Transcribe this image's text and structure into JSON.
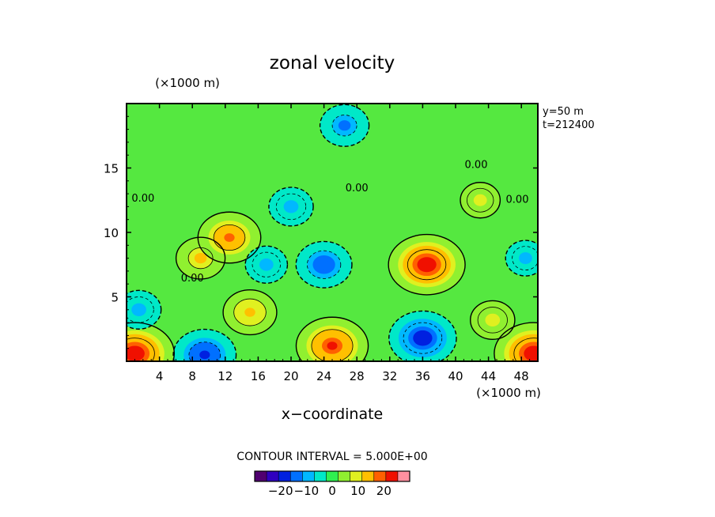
{
  "chart_data": {
    "type": "heatmap",
    "title": "zonal velocity",
    "xlabel": "x−coordinate",
    "x_unit": "(×1000 m)",
    "y_unit": "(×1000 m)",
    "xlim": [
      0,
      50
    ],
    "ylim": [
      0,
      20
    ],
    "x_ticks": [
      4,
      8,
      12,
      16,
      20,
      24,
      28,
      32,
      36,
      40,
      44,
      48
    ],
    "y_ticks": [
      5,
      10,
      15
    ],
    "annotations": [
      "y=50  m",
      "t=212400"
    ],
    "contour_interval_label": "CONTOUR INTERVAL = 5.000E+00",
    "contour_label": "0.00",
    "colorbar": {
      "min": -30,
      "max": 30,
      "ticks": [
        -20,
        -10,
        0,
        10,
        20
      ],
      "tick_labels": [
        "−20",
        "−10",
        "0",
        "10",
        "20"
      ]
    },
    "features": [
      {
        "x": 9,
        "y": 8,
        "value": 12
      },
      {
        "x": 15,
        "y": 3.8,
        "value": 14
      },
      {
        "x": 12.5,
        "y": 9.6,
        "value": 18
      },
      {
        "x": 36.5,
        "y": 7.5,
        "value": 24
      },
      {
        "x": 25,
        "y": 1.2,
        "value": 22
      },
      {
        "x": 44.5,
        "y": 3.2,
        "value": 10
      },
      {
        "x": 1,
        "y": 0.6,
        "value": 25
      },
      {
        "x": 49.5,
        "y": 0.6,
        "value": 25
      },
      {
        "x": 24,
        "y": 7.5,
        "value": -15
      },
      {
        "x": 36,
        "y": 1.8,
        "value": -20
      },
      {
        "x": 9.5,
        "y": 0.5,
        "value": -18
      },
      {
        "x": 17,
        "y": 7.5,
        "value": -9
      },
      {
        "x": 1.5,
        "y": 4,
        "value": -10
      },
      {
        "x": 20,
        "y": 12,
        "value": -10
      },
      {
        "x": 26.5,
        "y": 18.3,
        "value": -12
      },
      {
        "x": 48.5,
        "y": 8,
        "value": -8
      },
      {
        "x": 43,
        "y": 12.5,
        "value": 8
      }
    ]
  },
  "colors": {
    "colormap": [
      "#500070",
      "#3000c0",
      "#0020e0",
      "#0070ff",
      "#00b8ff",
      "#00e8c8",
      "#30f050",
      "#90f030",
      "#e0f020",
      "#ffc000",
      "#ff6000",
      "#f01000",
      "#ff90a0"
    ]
  }
}
